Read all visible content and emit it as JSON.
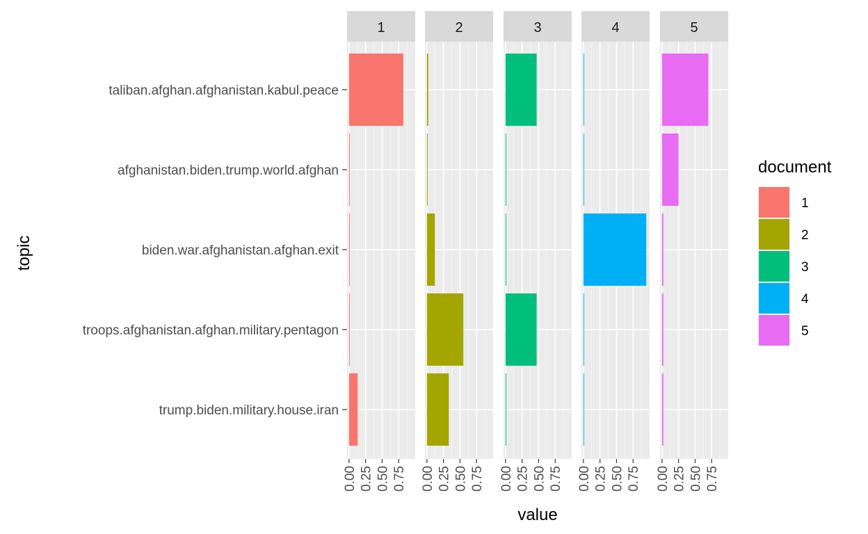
{
  "chart_data": {
    "type": "bar",
    "orientation": "horizontal",
    "facet_by": "document",
    "facets": [
      "1",
      "2",
      "3",
      "4",
      "5"
    ],
    "categories": [
      "taliban.afghan.afghanistan.kabul.peace",
      "afghanistan.biden.trump.world.afghan",
      "biden.war.afghanistan.afghan.exit",
      "troops.afghanistan.afghan.military.pentagon",
      "trump.biden.military.house.iran"
    ],
    "series": [
      {
        "name": "1",
        "color": "#F8766D",
        "values": [
          0.82,
          0.01,
          0.01,
          0.01,
          0.13
        ]
      },
      {
        "name": "2",
        "color": "#A3A500",
        "values": [
          0.02,
          0.01,
          0.12,
          0.55,
          0.33
        ]
      },
      {
        "name": "3",
        "color": "#00BF7D",
        "values": [
          0.47,
          0.01,
          0.01,
          0.47,
          0.01
        ]
      },
      {
        "name": "4",
        "color": "#00B0F6",
        "values": [
          0.01,
          0.01,
          0.95,
          0.01,
          0.01
        ]
      },
      {
        "name": "5",
        "color": "#E76BF3",
        "values": [
          0.7,
          0.25,
          0.02,
          0.02,
          0.02
        ]
      }
    ],
    "xlabel": "value",
    "ylabel": "topic",
    "xticks": [
      "0.00",
      "0.25",
      "0.50",
      "0.75"
    ],
    "xlim": [
      -0.03,
      1.0
    ],
    "legend": {
      "title": "document",
      "position": "right",
      "entries": [
        "1",
        "2",
        "3",
        "4",
        "5"
      ]
    },
    "grid": true
  }
}
